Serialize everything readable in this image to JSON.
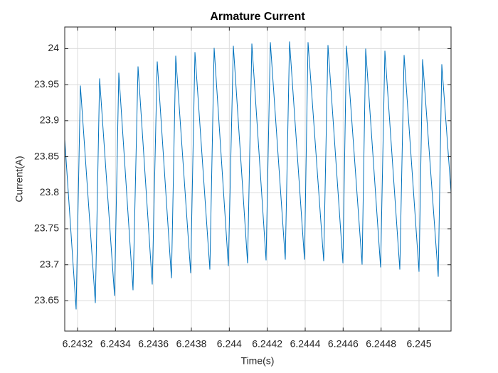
{
  "chart_data": {
    "type": "line",
    "title": "Armature Current",
    "xlabel": "Time(s)",
    "ylabel": "Current(A)",
    "x": [
      6.2431325,
      6.2431925,
      6.243215,
      6.2432938,
      6.2433163,
      6.243395,
      6.2434175,
      6.2434925,
      6.2435188,
      6.2435938,
      6.24362,
      6.243695,
      6.2437175,
      6.2437963,
      6.2438188,
      6.2438975,
      6.24392,
      6.243995,
      6.2440213,
      6.2440963,
      6.2441188,
      6.2441938,
      6.2442163,
      6.244295,
      6.2443175,
      6.2443963,
      6.244415,
      6.2444975,
      6.24452,
      6.2445988,
      6.2446175,
      6.2447,
      6.2447188,
      6.2447975,
      6.24482,
      6.2448988,
      6.2449213,
      6.245,
      6.2450188,
      6.2451013,
      6.24512,
      6.2451688
    ],
    "series": [
      {
        "name": "Current",
        "color": "#0072bd",
        "values": [
          23.8738,
          23.6381,
          23.9487,
          23.6469,
          23.9586,
          23.6568,
          23.9665,
          23.6647,
          23.9753,
          23.6726,
          23.9822,
          23.6815,
          23.9901,
          23.6884,
          23.9951,
          23.6933,
          24.001,
          23.6982,
          24.0039,
          23.7022,
          24.0069,
          23.7061,
          24.0089,
          23.7071,
          24.0099,
          23.7071,
          24.0089,
          23.7051,
          24.0049,
          23.7022,
          24.0039,
          23.7002,
          24.0,
          23.6963,
          23.997,
          23.6933,
          23.9911,
          23.6903,
          23.9852,
          23.6834,
          23.9783,
          23.8008
        ]
      }
    ],
    "xlim": [
      6.2431325,
      6.2451688
    ],
    "xticks": [
      6.2432,
      6.2434,
      6.2436,
      6.2438,
      6.244,
      6.2442,
      6.2444,
      6.2446,
      6.2448,
      6.245
    ],
    "ylim": [
      23.608,
      24.03
    ],
    "yticks": [
      23.65,
      23.7,
      23.75,
      23.8,
      23.85,
      23.9,
      23.95,
      24
    ],
    "grid": true
  }
}
